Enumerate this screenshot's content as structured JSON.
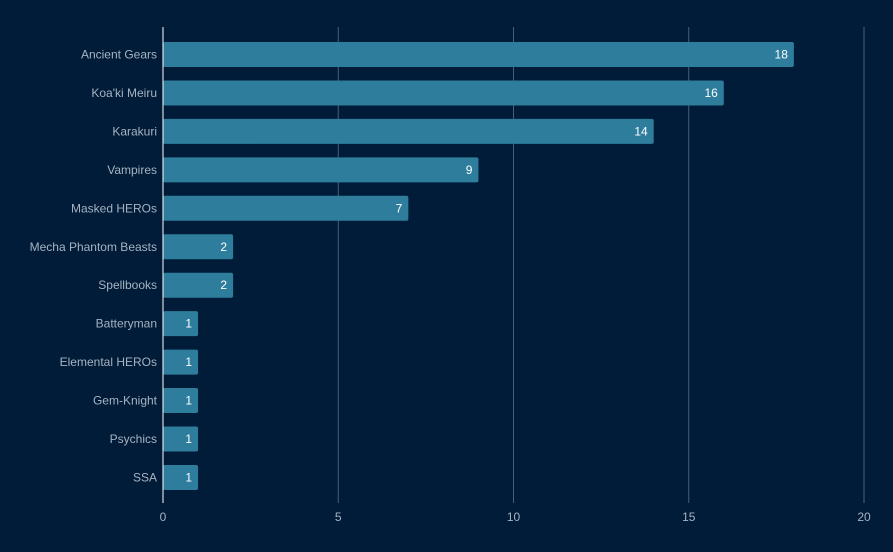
{
  "chart_data": {
    "type": "bar",
    "orientation": "horizontal",
    "categories": [
      "Ancient Gears",
      "Koa'ki Meiru",
      "Karakuri",
      "Vampires",
      "Masked HEROs",
      "Mecha Phantom Beasts",
      "Spellbooks",
      "Batteryman",
      "Elemental HEROs",
      "Gem-Knight",
      "Psychics",
      "SSA"
    ],
    "values": [
      18,
      16,
      14,
      9,
      7,
      2,
      2,
      1,
      1,
      1,
      1,
      1
    ],
    "xlim": [
      0,
      20
    ],
    "xticks": [
      "0",
      "5",
      "10",
      "15",
      "20"
    ],
    "grid": true,
    "data_labels": true,
    "colors": {
      "background": "#011c38",
      "bar": "#2e7d9c",
      "grid": "#4a5f75",
      "axis": "#ffffff"
    }
  }
}
